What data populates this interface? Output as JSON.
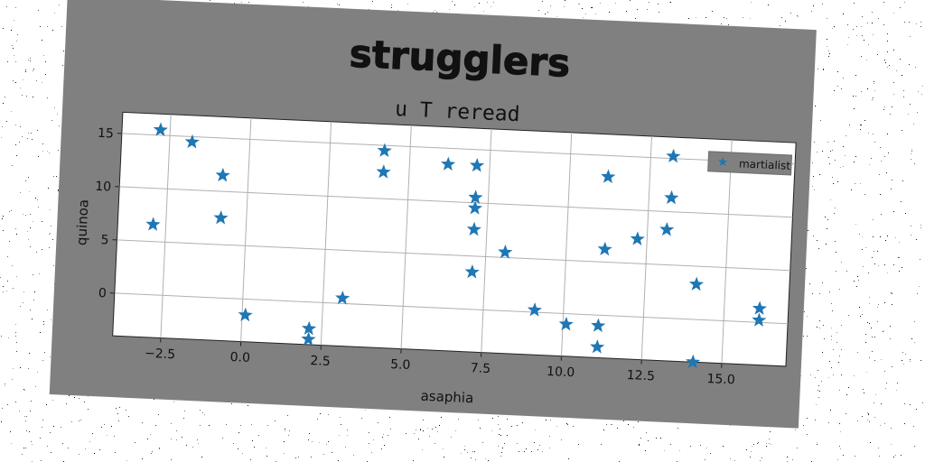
{
  "chart_data": {
    "type": "scatter",
    "title": "strugglers",
    "subtitle": "u T reread",
    "xlabel": "asaphia",
    "ylabel": "quinoa",
    "xlim": [
      -4.0,
      17.0
    ],
    "ylim": [
      -4.0,
      17.0
    ],
    "xticks": [
      -2.5,
      0.0,
      2.5,
      5.0,
      7.5,
      10.0,
      12.5,
      15.0
    ],
    "xtick_labels": [
      "−2.5",
      "0.0",
      "2.5",
      "5.0",
      "7.5",
      "10.0",
      "12.5",
      "15.0"
    ],
    "yticks": [
      0,
      5,
      10,
      15
    ],
    "ytick_labels": [
      "0",
      "5",
      "10",
      "15"
    ],
    "grid": true,
    "legend_position": "top-right",
    "series": [
      {
        "name": "martialist",
        "color": "#1f77b4",
        "marker": "star",
        "x": [
          -2.8,
          -1.8,
          -0.8,
          -0.8,
          -2.9,
          0.1,
          2.1,
          2.1,
          3.1,
          4.2,
          4.2,
          6.2,
          7.1,
          7.1,
          7.1,
          7.1,
          7.1,
          8.1,
          9.1,
          10.1,
          11.1,
          11.1,
          11.2,
          11.2,
          12.2,
          13.1,
          13.2,
          13.2,
          14.1,
          14.1,
          16.1,
          16.1
        ],
        "y": [
          15.5,
          14.5,
          11.5,
          7.5,
          6.6,
          -1.5,
          -2.5,
          -3.5,
          0.5,
          14.5,
          12.5,
          13.5,
          13.5,
          10.5,
          9.5,
          7.5,
          3.5,
          5.5,
          0.2,
          -1.0,
          -1.0,
          -3.0,
          6.2,
          13.0,
          7.3,
          8.3,
          11.3,
          15.2,
          3.3,
          -4.0,
          1.3,
          0.2
        ]
      }
    ]
  }
}
